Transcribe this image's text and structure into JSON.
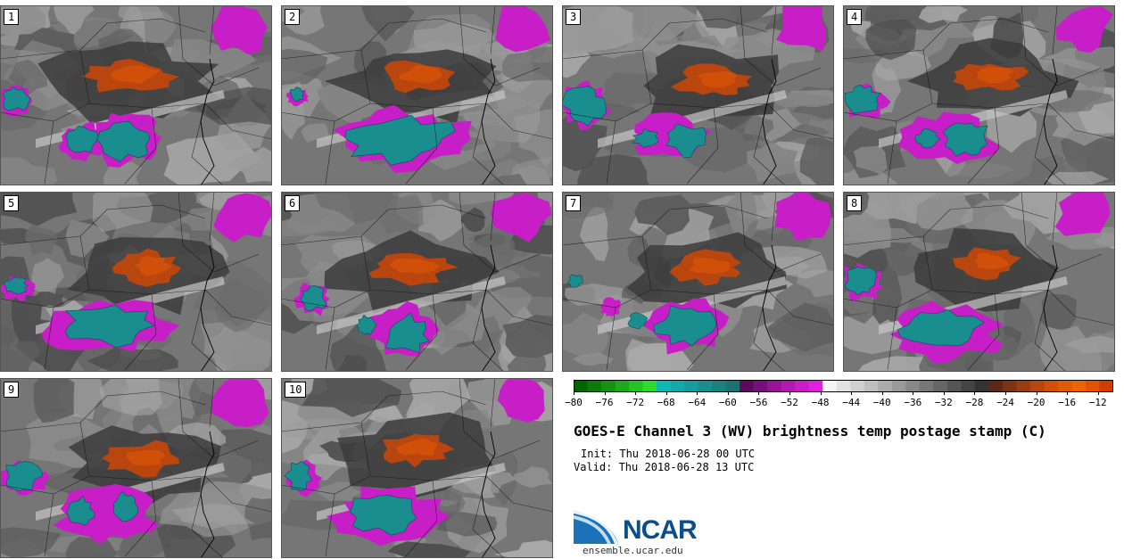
{
  "chart_data": {
    "type": "postage_stamp_map",
    "title": "GOES-E Channel 3 (WV) brightness temp postage stamp (C)",
    "init": "Init: Thu 2018-06-28 00 UTC",
    "valid": "Valid: Thu 2018-06-28 13 UTC",
    "members": [
      "1",
      "2",
      "3",
      "4",
      "5",
      "6",
      "7",
      "8",
      "9",
      "10"
    ],
    "colorbar": {
      "vmin": -80,
      "vmax": -10,
      "step": 2,
      "tick_labels": [
        "−80",
        "−76",
        "−72",
        "−68",
        "−64",
        "−60",
        "−56",
        "−52",
        "−48",
        "−44",
        "−40",
        "−36",
        "−32",
        "−28",
        "−24",
        "−20",
        "−16",
        "−12"
      ],
      "tick_values": [
        -80,
        -76,
        -72,
        -68,
        -64,
        -60,
        -56,
        -52,
        -48,
        -44,
        -40,
        -36,
        -32,
        -28,
        -24,
        -20,
        -16,
        -12
      ],
      "colors": [
        "#006400",
        "#0b7a0b",
        "#139213",
        "#1aaa1a",
        "#22c322",
        "#2ddb2d",
        "#0fb7b7",
        "#14a9a9",
        "#189b9b",
        "#1a8e8e",
        "#1c8080",
        "#1d7373",
        "#5a0c5a",
        "#78107a",
        "#951595",
        "#b01ab0",
        "#c81ec8",
        "#e020e0",
        "#f4f4f4",
        "#e2e2e2",
        "#d0d0d0",
        "#bebebe",
        "#acacac",
        "#9a9a9a",
        "#888888",
        "#777777",
        "#666666",
        "#555555",
        "#444444",
        "#333333",
        "#5a2a18",
        "#7a3316",
        "#9a3c12",
        "#b8460e",
        "#d0500a",
        "#e05a08",
        "#ec6406",
        "#e35204",
        "#cf3f02"
      ]
    }
  },
  "logo": {
    "text": "NCAR",
    "url": "ensemble.ucar.edu"
  }
}
